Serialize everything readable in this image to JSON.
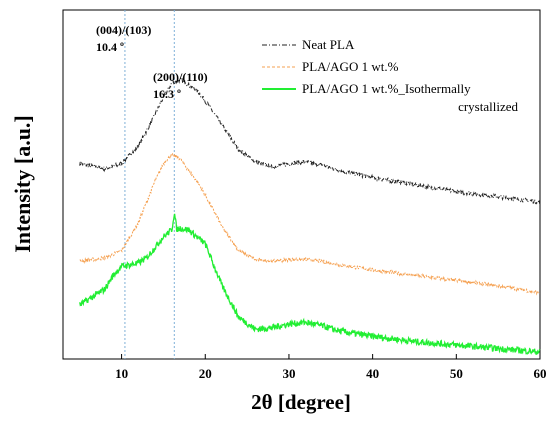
{
  "chart_data": {
    "type": "line",
    "xlabel": "2θ [degree]",
    "ylabel": "Intensity [a.u.]",
    "xlim": [
      3,
      60
    ],
    "x_ticks": [
      10,
      20,
      30,
      40,
      50,
      60
    ],
    "x_tick_labels": [
      "10",
      "20",
      "30",
      "40",
      "50",
      "60"
    ],
    "y_ticks_shown": false,
    "legend_position": "top-right",
    "annotations": [
      {
        "line1": "(004)/(103)",
        "line2": "10.4 º",
        "x": 10.4
      },
      {
        "line1": "(200)/(110)",
        "line2": "16.3 º",
        "x": 16.3
      }
    ],
    "series": [
      {
        "name": "Neat PLA",
        "color": "#222222",
        "style": "dash-dot",
        "x": [
          5,
          8,
          10,
          12,
          14,
          15,
          16,
          17,
          18,
          19,
          20,
          22,
          24,
          26,
          28,
          30,
          32,
          34,
          36,
          40,
          45,
          50,
          55,
          60
        ],
        "y": [
          0.56,
          0.545,
          0.56,
          0.61,
          0.7,
          0.75,
          0.79,
          0.8,
          0.785,
          0.77,
          0.74,
          0.67,
          0.6,
          0.565,
          0.55,
          0.56,
          0.565,
          0.555,
          0.54,
          0.52,
          0.5,
          0.48,
          0.465,
          0.45
        ]
      },
      {
        "name": "PLA/AGO 1 wt.%",
        "color": "#f5a050",
        "style": "dashed",
        "x": [
          5,
          8,
          10,
          12,
          14,
          15,
          16,
          17,
          18,
          19,
          20,
          22,
          24,
          26,
          28,
          30,
          32,
          34,
          36,
          40,
          45,
          50,
          55,
          60
        ],
        "y": [
          0.28,
          0.29,
          0.31,
          0.39,
          0.51,
          0.56,
          0.585,
          0.575,
          0.54,
          0.51,
          0.47,
          0.38,
          0.31,
          0.285,
          0.28,
          0.285,
          0.285,
          0.28,
          0.27,
          0.255,
          0.24,
          0.225,
          0.21,
          0.19
        ]
      },
      {
        "name": "PLA/AGO 1 wt.%_Isothermally crystallized",
        "color": "#22ee33",
        "style": "solid",
        "x": [
          5,
          6,
          8,
          9,
          10,
          11,
          12,
          13,
          14,
          15,
          16,
          16.3,
          16.6,
          17,
          18,
          19,
          20,
          21,
          22,
          24,
          26,
          28,
          30,
          32,
          34,
          36,
          40,
          45,
          50,
          55,
          60
        ],
        "y": [
          0.155,
          0.17,
          0.2,
          0.24,
          0.265,
          0.27,
          0.275,
          0.29,
          0.32,
          0.35,
          0.37,
          0.42,
          0.37,
          0.375,
          0.37,
          0.35,
          0.33,
          0.27,
          0.21,
          0.12,
          0.085,
          0.09,
          0.1,
          0.105,
          0.095,
          0.08,
          0.065,
          0.05,
          0.04,
          0.03,
          0.02
        ]
      }
    ]
  }
}
